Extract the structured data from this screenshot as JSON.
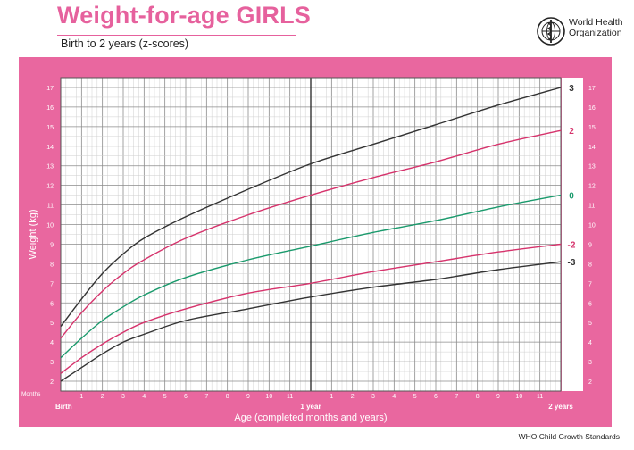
{
  "header": {
    "title": "Weight-for-age GIRLS",
    "subtitle": "Birth to 2 years (z-scores)",
    "org_line1": "World Health",
    "org_line2": "Organization",
    "logo_icon": "who-emblem-icon"
  },
  "footer": {
    "text": "WHO Child Growth Standards"
  },
  "colors": {
    "frame": "#e9679f",
    "title": "#e6619d",
    "grid": "#9a9a9a"
  },
  "chart_data": {
    "type": "line",
    "title": "Weight-for-age GIRLS",
    "subtitle": "Birth to 2 years (z-scores)",
    "xlabel": "Age (completed months and years)",
    "ylabel": "Weight (kg)",
    "x_corner_label": "Months",
    "xlim": [
      0,
      24
    ],
    "ylim": [
      1.5,
      17.5
    ],
    "x": [
      0,
      1,
      2,
      3,
      4,
      6,
      9,
      12,
      15,
      18,
      21,
      24
    ],
    "x_tick_labels": [
      {
        "x": 0,
        "label": "Birth"
      },
      {
        "x": 1,
        "label": "1"
      },
      {
        "x": 2,
        "label": "2"
      },
      {
        "x": 3,
        "label": "3"
      },
      {
        "x": 4,
        "label": "4"
      },
      {
        "x": 5,
        "label": "5"
      },
      {
        "x": 6,
        "label": "6"
      },
      {
        "x": 7,
        "label": "7"
      },
      {
        "x": 8,
        "label": "8"
      },
      {
        "x": 9,
        "label": "9"
      },
      {
        "x": 10,
        "label": "10"
      },
      {
        "x": 11,
        "label": "11"
      },
      {
        "x": 12,
        "label": "1 year"
      },
      {
        "x": 13,
        "label": "1"
      },
      {
        "x": 14,
        "label": "2"
      },
      {
        "x": 15,
        "label": "3"
      },
      {
        "x": 16,
        "label": "4"
      },
      {
        "x": 17,
        "label": "5"
      },
      {
        "x": 18,
        "label": "6"
      },
      {
        "x": 19,
        "label": "7"
      },
      {
        "x": 20,
        "label": "8"
      },
      {
        "x": 21,
        "label": "9"
      },
      {
        "x": 22,
        "label": "10"
      },
      {
        "x": 23,
        "label": "11"
      },
      {
        "x": 24,
        "label": "2 years"
      }
    ],
    "y_ticks": [
      "2",
      "3",
      "4",
      "5",
      "6",
      "7",
      "8",
      "9",
      "10",
      "11",
      "12",
      "13",
      "14",
      "15",
      "16",
      "17"
    ],
    "grid": true,
    "series": [
      {
        "name": "3",
        "color": "#333333",
        "values": [
          4.8,
          6.2,
          7.5,
          8.5,
          9.3,
          10.4,
          11.8,
          13.1,
          14.1,
          15.1,
          16.1,
          17.0
        ]
      },
      {
        "name": "2",
        "color": "#d6336c",
        "values": [
          4.2,
          5.5,
          6.6,
          7.5,
          8.2,
          9.3,
          10.5,
          11.5,
          12.4,
          13.2,
          14.1,
          14.8
        ]
      },
      {
        "name": "0",
        "color": "#1a9a6c",
        "values": [
          3.2,
          4.2,
          5.1,
          5.8,
          6.4,
          7.3,
          8.2,
          8.9,
          9.6,
          10.2,
          10.9,
          11.5
        ]
      },
      {
        "name": "-2",
        "color": "#d6336c",
        "values": [
          2.4,
          3.2,
          3.9,
          4.5,
          5.0,
          5.7,
          6.5,
          7.0,
          7.6,
          8.1,
          8.6,
          9.0
        ]
      },
      {
        "name": "-3",
        "color": "#333333",
        "values": [
          2.0,
          2.7,
          3.4,
          4.0,
          4.4,
          5.1,
          5.7,
          6.3,
          6.8,
          7.2,
          7.7,
          8.1
        ]
      }
    ]
  }
}
